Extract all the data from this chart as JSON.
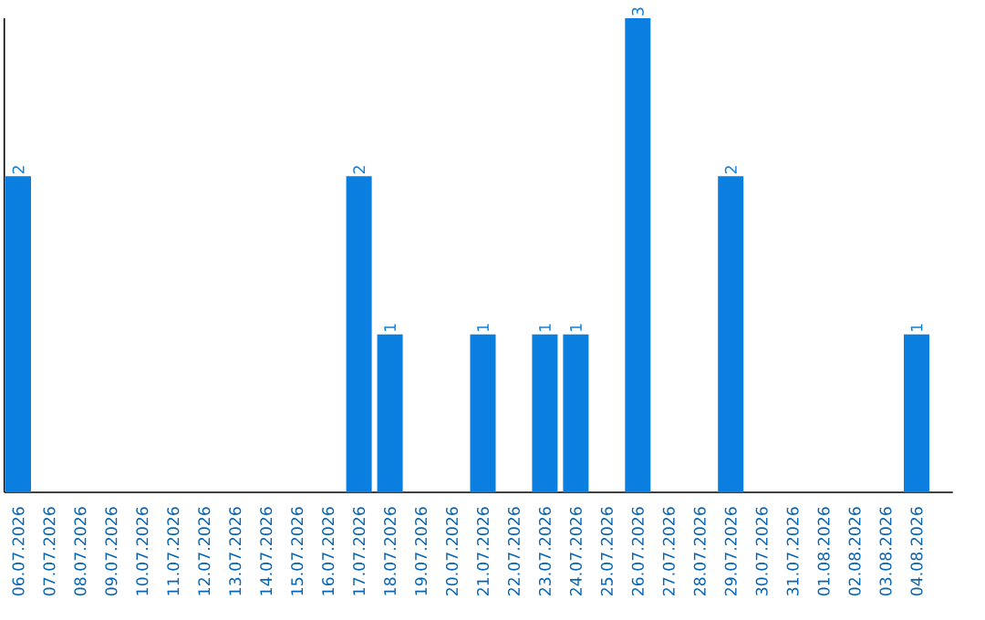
{
  "chart_data": {
    "type": "bar",
    "categories": [
      "06.07.2026",
      "07.07.2026",
      "08.07.2026",
      "09.07.2026",
      "10.07.2026",
      "11.07.2026",
      "12.07.2026",
      "13.07.2026",
      "14.07.2026",
      "15.07.2026",
      "16.07.2026",
      "17.07.2026",
      "18.07.2026",
      "19.07.2026",
      "20.07.2026",
      "21.07.2026",
      "22.07.2026",
      "23.07.2026",
      "24.07.2026",
      "25.07.2026",
      "26.07.2026",
      "27.07.2026",
      "28.07.2026",
      "29.07.2026",
      "30.07.2026",
      "31.07.2026",
      "01.08.2026",
      "02.08.2026",
      "03.08.2026",
      "04.08.2026"
    ],
    "values": [
      2,
      0,
      0,
      0,
      0,
      0,
      0,
      0,
      0,
      0,
      0,
      2,
      1,
      0,
      0,
      1,
      0,
      1,
      1,
      0,
      3,
      0,
      0,
      2,
      0,
      0,
      0,
      0,
      0,
      1
    ],
    "value_labels": [
      "2",
      null,
      null,
      null,
      null,
      null,
      null,
      null,
      null,
      null,
      null,
      "2",
      "1",
      null,
      null,
      "1",
      null,
      "1",
      "1",
      null,
      "3",
      null,
      null,
      "2",
      null,
      null,
      null,
      null,
      null,
      "1"
    ],
    "color": "#0a7fe0"
  }
}
